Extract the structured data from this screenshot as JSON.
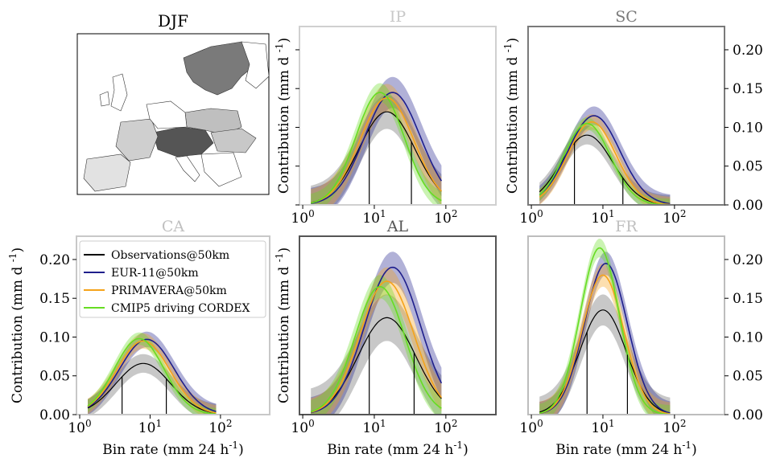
{
  "figure": {
    "season": "DJF",
    "ylabel_text": "Contribution (mm d",
    "ylabel_exp": "-1",
    "ylabel_close": ")",
    "xlabel_text": "Bin rate (mm 24 h",
    "xlabel_exp": "-1",
    "xlabel_close": ")",
    "xtick_base": "10",
    "xticks": [
      "0",
      "1",
      "2"
    ],
    "yticks": [
      "0.00",
      "0.05",
      "0.10",
      "0.15",
      "0.20"
    ]
  },
  "legend": [
    {
      "label": "Observations@50km",
      "color": "#000000"
    },
    {
      "label": "EUR-11@50km",
      "color": "#1f1f8c"
    },
    {
      "label": "PRIMAVERA@50km",
      "color": "#f5a31a"
    },
    {
      "label": "CMIP5 driving CORDEX",
      "color": "#66dd22"
    }
  ],
  "map": {
    "regions": [
      "IP",
      "SC",
      "CA",
      "AL",
      "FR"
    ],
    "region_shades": {
      "IP": "#dcdcdc",
      "SC": "#7a7a7a",
      "CA": "#c8c8c8",
      "AL": "#555555",
      "FR": "#bdbdbd"
    }
  },
  "chart_data": [
    {
      "type": "line",
      "title": "IP",
      "title_color": "#c8c8c8",
      "frame_color": "#d0d0d0",
      "xscale": "log",
      "xlim": [
        0.9,
        500
      ],
      "ylim": [
        0,
        0.23
      ],
      "xlabel": "",
      "ylabel": "Contribution (mm d-1)",
      "observation_interval": [
        8.5,
        33
      ],
      "series": [
        {
          "name": "Observations@50km",
          "color": "#000000",
          "peak_x": 15,
          "peak_y": 0.12,
          "width": 0.6,
          "band": 0.022
        },
        {
          "name": "EUR-11@50km",
          "color": "#1f1f8c",
          "peak_x": 18,
          "peak_y": 0.145,
          "width": 0.6,
          "band": 0.02
        },
        {
          "name": "PRIMAVERA@50km",
          "color": "#f5a31a",
          "peak_x": 15,
          "peak_y": 0.138,
          "width": 0.58,
          "band": 0.018
        },
        {
          "name": "CMIP5 driving CORDEX",
          "color": "#66dd22",
          "peak_x": 12,
          "peak_y": 0.145,
          "width": 0.52,
          "band": 0.012
        }
      ]
    },
    {
      "type": "line",
      "title": "SC",
      "title_color": "#7a7a7a",
      "frame_color": "#7a7a7a",
      "xscale": "log",
      "xlim": [
        0.9,
        500
      ],
      "ylim": [
        0,
        0.23
      ],
      "xlabel": "",
      "ylabel": "",
      "observation_interval": [
        4,
        19
      ],
      "series": [
        {
          "name": "Observations@50km",
          "color": "#000000",
          "peak_x": 6,
          "peak_y": 0.09,
          "width": 0.56,
          "band": 0.012
        },
        {
          "name": "EUR-11@50km",
          "color": "#1f1f8c",
          "peak_x": 7.5,
          "peak_y": 0.115,
          "width": 0.56,
          "band": 0.012
        },
        {
          "name": "PRIMAVERA@50km",
          "color": "#f5a31a",
          "peak_x": 7,
          "peak_y": 0.107,
          "width": 0.52,
          "band": 0.01
        },
        {
          "name": "CMIP5 driving CORDEX",
          "color": "#66dd22",
          "peak_x": 6,
          "peak_y": 0.105,
          "width": 0.5,
          "band": 0.008
        }
      ]
    },
    {
      "type": "line",
      "title": "CA",
      "title_color": "#c0c0c0",
      "frame_color": "#c8c8c8",
      "xscale": "log",
      "xlim": [
        0.9,
        500
      ],
      "ylim": [
        0,
        0.23
      ],
      "xlabel": "Bin rate (mm 24h-1)",
      "ylabel": "Contribution (mm d-1)",
      "observation_interval": [
        4,
        17
      ],
      "series": [
        {
          "name": "Observations@50km",
          "color": "#000000",
          "peak_x": 8,
          "peak_y": 0.066,
          "width": 0.6,
          "band": 0.012
        },
        {
          "name": "EUR-11@50km",
          "color": "#1f1f8c",
          "peak_x": 9,
          "peak_y": 0.097,
          "width": 0.6,
          "band": 0.01
        },
        {
          "name": "PRIMAVERA@50km",
          "color": "#f5a31a",
          "peak_x": 8,
          "peak_y": 0.095,
          "width": 0.58,
          "band": 0.01
        },
        {
          "name": "CMIP5 driving CORDEX",
          "color": "#66dd22",
          "peak_x": 7,
          "peak_y": 0.098,
          "width": 0.54,
          "band": 0.008
        }
      ]
    },
    {
      "type": "line",
      "title": "AL",
      "title_color": "#555555",
      "frame_color": "#555555",
      "xscale": "log",
      "xlim": [
        0.9,
        500
      ],
      "ylim": [
        0,
        0.23
      ],
      "xlabel": "Bin rate (mm 24h-1)",
      "ylabel": "Contribution (mm d-1)",
      "observation_interval": [
        8.5,
        36
      ],
      "series": [
        {
          "name": "Observations@50km",
          "color": "#000000",
          "peak_x": 15,
          "peak_y": 0.125,
          "width": 0.62,
          "band": 0.03
        },
        {
          "name": "EUR-11@50km",
          "color": "#1f1f8c",
          "peak_x": 18,
          "peak_y": 0.19,
          "width": 0.6,
          "band": 0.02
        },
        {
          "name": "PRIMAVERA@50km",
          "color": "#f5a31a",
          "peak_x": 15,
          "peak_y": 0.172,
          "width": 0.58,
          "band": 0.018
        },
        {
          "name": "CMIP5 driving CORDEX",
          "color": "#66dd22",
          "peak_x": 12,
          "peak_y": 0.165,
          "width": 0.54,
          "band": 0.015
        }
      ]
    },
    {
      "type": "line",
      "title": "FR",
      "title_color": "#c0c0c0",
      "frame_color": "#bdbdbd",
      "xscale": "log",
      "xlim": [
        0.9,
        500
      ],
      "ylim": [
        0,
        0.23
      ],
      "xlabel": "Bin rate (mm 24h-1)",
      "ylabel": "",
      "observation_interval": [
        6,
        22
      ],
      "series": [
        {
          "name": "Observations@50km",
          "color": "#000000",
          "peak_x": 10,
          "peak_y": 0.135,
          "width": 0.5,
          "band": 0.02
        },
        {
          "name": "EUR-11@50km",
          "color": "#1f1f8c",
          "peak_x": 11,
          "peak_y": 0.195,
          "width": 0.46,
          "band": 0.015
        },
        {
          "name": "PRIMAVERA@50km",
          "color": "#f5a31a",
          "peak_x": 10,
          "peak_y": 0.18,
          "width": 0.45,
          "band": 0.015
        },
        {
          "name": "CMIP5 driving CORDEX",
          "color": "#66dd22",
          "peak_x": 9,
          "peak_y": 0.215,
          "width": 0.42,
          "band": 0.012
        }
      ]
    }
  ]
}
